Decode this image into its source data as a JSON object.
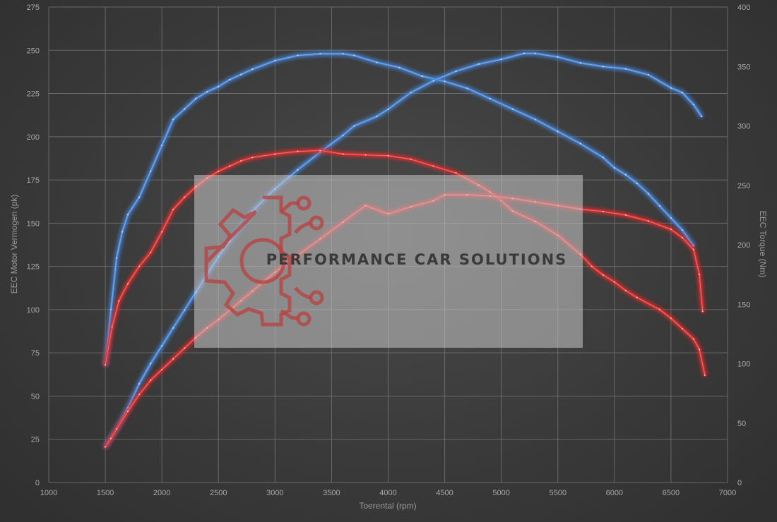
{
  "chart_data": {
    "type": "line",
    "title": "",
    "xlabel": "Toerental (rpm)",
    "ylabel_left": "EEC Motor Vermogen (pk)",
    "ylabel_right": "EEC Torque (Nm)",
    "xlim": [
      1000,
      7000
    ],
    "ylim_left": [
      0,
      275
    ],
    "ylim_right": [
      0,
      400
    ],
    "x_ticks": [
      "1000",
      "1500",
      "2000",
      "2500",
      "3000",
      "3500",
      "4000",
      "4500",
      "5000",
      "5500",
      "6000",
      "6500",
      "7000"
    ],
    "y_left_ticks": [
      "0",
      "25",
      "50",
      "75",
      "100",
      "125",
      "150",
      "175",
      "200",
      "225",
      "250",
      "275"
    ],
    "y_right_ticks": [
      "0",
      "50",
      "100",
      "150",
      "200",
      "250",
      "300",
      "350",
      "400"
    ],
    "grid": true,
    "colors": {
      "blue": "#4a86d8",
      "red": "#e03030"
    },
    "series": [
      {
        "color": "blue",
        "axis": "left",
        "points": [
          [
            1500,
            68
          ],
          [
            1550,
            100
          ],
          [
            1600,
            130
          ],
          [
            1650,
            145
          ],
          [
            1700,
            155
          ],
          [
            1800,
            165
          ],
          [
            1900,
            180
          ],
          [
            2000,
            195
          ],
          [
            2100,
            210
          ],
          [
            2200,
            216
          ],
          [
            2300,
            222
          ],
          [
            2400,
            226
          ],
          [
            2500,
            229
          ],
          [
            2600,
            233
          ],
          [
            2700,
            236
          ],
          [
            2800,
            239
          ],
          [
            3000,
            244
          ],
          [
            3200,
            247
          ],
          [
            3400,
            248
          ],
          [
            3600,
            248
          ],
          [
            3700,
            247
          ],
          [
            3900,
            243
          ],
          [
            4100,
            240
          ],
          [
            4300,
            235
          ],
          [
            4500,
            232
          ],
          [
            4700,
            228
          ],
          [
            4900,
            222
          ],
          [
            5100,
            216
          ],
          [
            5300,
            210
          ],
          [
            5500,
            203
          ],
          [
            5700,
            196
          ],
          [
            5900,
            188
          ],
          [
            6000,
            182
          ],
          [
            6100,
            178
          ],
          [
            6200,
            173
          ],
          [
            6300,
            167
          ],
          [
            6400,
            160
          ],
          [
            6500,
            153
          ],
          [
            6600,
            146
          ],
          [
            6700,
            137
          ]
        ]
      },
      {
        "color": "blue",
        "axis": "right",
        "points": [
          [
            1500,
            30
          ],
          [
            1550,
            38
          ],
          [
            1600,
            45
          ],
          [
            1700,
            63
          ],
          [
            1800,
            83
          ],
          [
            1900,
            100
          ],
          [
            2000,
            115
          ],
          [
            2100,
            130
          ],
          [
            2200,
            145
          ],
          [
            2300,
            160
          ],
          [
            2400,
            175
          ],
          [
            2500,
            190
          ],
          [
            2600,
            203
          ],
          [
            2700,
            215
          ],
          [
            2800,
            228
          ],
          [
            2900,
            238
          ],
          [
            3000,
            247
          ],
          [
            3200,
            263
          ],
          [
            3400,
            278
          ],
          [
            3600,
            292
          ],
          [
            3700,
            300
          ],
          [
            3900,
            308
          ],
          [
            4000,
            314
          ],
          [
            4200,
            328
          ],
          [
            4400,
            338
          ],
          [
            4600,
            346
          ],
          [
            4800,
            352
          ],
          [
            5000,
            356
          ],
          [
            5200,
            361
          ],
          [
            5300,
            361
          ],
          [
            5500,
            358
          ],
          [
            5700,
            353
          ],
          [
            5900,
            350
          ],
          [
            6100,
            348
          ],
          [
            6300,
            343
          ],
          [
            6500,
            332
          ],
          [
            6600,
            328
          ],
          [
            6700,
            318
          ],
          [
            6770,
            308
          ]
        ]
      },
      {
        "color": "red",
        "axis": "left",
        "points": [
          [
            1500,
            68
          ],
          [
            1560,
            90
          ],
          [
            1620,
            105
          ],
          [
            1700,
            115
          ],
          [
            1800,
            125
          ],
          [
            1900,
            133
          ],
          [
            2000,
            145
          ],
          [
            2100,
            158
          ],
          [
            2200,
            165
          ],
          [
            2300,
            171
          ],
          [
            2400,
            176
          ],
          [
            2500,
            180
          ],
          [
            2600,
            183
          ],
          [
            2700,
            186
          ],
          [
            2800,
            188
          ],
          [
            3000,
            190
          ],
          [
            3200,
            191.5
          ],
          [
            3400,
            192
          ],
          [
            3600,
            190
          ],
          [
            3800,
            189.5
          ],
          [
            4000,
            189
          ],
          [
            4200,
            187
          ],
          [
            4400,
            183
          ],
          [
            4600,
            179
          ],
          [
            4800,
            172
          ],
          [
            4900,
            168
          ],
          [
            5000,
            163
          ],
          [
            5100,
            157
          ],
          [
            5300,
            151
          ],
          [
            5500,
            143
          ],
          [
            5700,
            132
          ],
          [
            5800,
            125
          ],
          [
            5900,
            120
          ],
          [
            6000,
            116
          ],
          [
            6100,
            111
          ],
          [
            6200,
            107
          ],
          [
            6400,
            100
          ],
          [
            6500,
            95
          ],
          [
            6600,
            89
          ],
          [
            6700,
            83
          ],
          [
            6750,
            77
          ],
          [
            6800,
            62
          ]
        ]
      },
      {
        "color": "red",
        "axis": "right",
        "points": [
          [
            1500,
            30
          ],
          [
            1550,
            37
          ],
          [
            1600,
            45
          ],
          [
            1700,
            60
          ],
          [
            1800,
            74
          ],
          [
            1900,
            86
          ],
          [
            2000,
            95
          ],
          [
            2100,
            104
          ],
          [
            2200,
            113
          ],
          [
            2300,
            122
          ],
          [
            2400,
            130
          ],
          [
            2500,
            137
          ],
          [
            2600,
            145
          ],
          [
            2700,
            153
          ],
          [
            2800,
            161
          ],
          [
            2900,
            169
          ],
          [
            3000,
            177
          ],
          [
            3200,
            191
          ],
          [
            3400,
            205
          ],
          [
            3600,
            219
          ],
          [
            3800,
            233
          ],
          [
            4000,
            226
          ],
          [
            4200,
            232
          ],
          [
            4400,
            237
          ],
          [
            4500,
            242
          ],
          [
            4700,
            242
          ],
          [
            4900,
            241
          ],
          [
            5100,
            239
          ],
          [
            5300,
            236
          ],
          [
            5500,
            233
          ],
          [
            5700,
            230
          ],
          [
            5900,
            228
          ],
          [
            6100,
            225
          ],
          [
            6300,
            220
          ],
          [
            6500,
            213
          ],
          [
            6600,
            206
          ],
          [
            6700,
            196
          ],
          [
            6750,
            175
          ],
          [
            6780,
            144
          ]
        ]
      }
    ]
  },
  "watermark": {
    "text": "PERFORMANCE CAR SOLUTIONS",
    "logo_icon": "gear-circuit-logo"
  }
}
